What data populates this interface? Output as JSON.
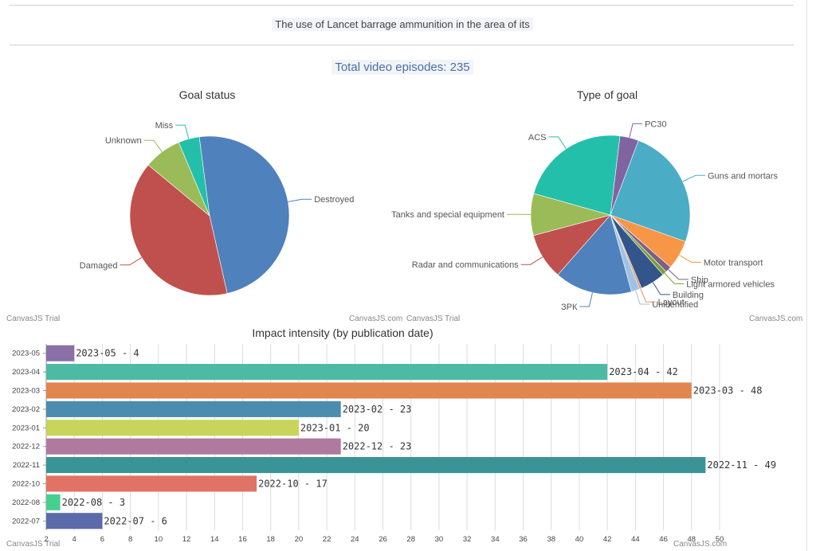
{
  "header": {
    "title": "The use of Lancet barrage ammunition in the area of its",
    "total": "Total video episodes: 235"
  },
  "credits": {
    "trial": "CanvasJS Trial",
    "site": "CanvasJS.com"
  },
  "chart_data": [
    {
      "type": "pie",
      "title": "Goal status",
      "labels": [
        "Destroyed",
        "Damaged",
        "Unknown",
        "Miss"
      ],
      "values": [
        114,
        93,
        18,
        10
      ],
      "colors": [
        "#4F81BC",
        "#C0504E",
        "#9BBB58",
        "#23BFAA"
      ]
    },
    {
      "type": "pie",
      "title": "Type of goal",
      "labels": [
        "PC30",
        "Guns and mortars",
        "Motor transport",
        "Ship",
        "Light armored vehicles",
        "Building",
        "Layout",
        "Unidentified",
        "ЗРК",
        "Radar and communications",
        "Tanks and special equipment",
        "ACS"
      ],
      "values": [
        9,
        58,
        14,
        3,
        2,
        12,
        1,
        4,
        37,
        22,
        20,
        53
      ],
      "colors": [
        "#8064A1",
        "#4AACC5",
        "#F79647",
        "#7F6084",
        "#77A033",
        "#33558B",
        "#E59566",
        "#9DC2E3",
        "#4F81BC",
        "#C0504E",
        "#9BBB58",
        "#23BFAA"
      ]
    },
    {
      "type": "bar",
      "orientation": "horizontal",
      "title": "Impact intensity (by publication date)",
      "categories": [
        "2023-05",
        "2023-04",
        "2023-03",
        "2023-02",
        "2023-01",
        "2022-12",
        "2022-11",
        "2022-10",
        "2022-08",
        "2022-07"
      ],
      "values": [
        4,
        42,
        48,
        23,
        20,
        23,
        49,
        17,
        3,
        6
      ],
      "data_labels": [
        "2023-05 - 4",
        "2023-04 - 42",
        "2023-03 - 48",
        "2023-02 - 23",
        "2023-01 - 20",
        "2022-12 - 23",
        "2022-11 - 49",
        "2022-10 - 17",
        "2022-08 - 3",
        "2022-07 - 6"
      ],
      "colors": [
        "#8A6FA8",
        "#4DBBA3",
        "#E0864E",
        "#4A8DAE",
        "#C8D45A",
        "#B07A9F",
        "#3A9397",
        "#E07365",
        "#48CF90",
        "#5B6BAA"
      ],
      "xticks": [
        2,
        4,
        6,
        8,
        10,
        12,
        14,
        16,
        18,
        20,
        22,
        24,
        26,
        28,
        30,
        32,
        34,
        36,
        38,
        40,
        42,
        44,
        46,
        48,
        50
      ],
      "xlim": [
        2,
        50
      ],
      "grid": true
    }
  ]
}
